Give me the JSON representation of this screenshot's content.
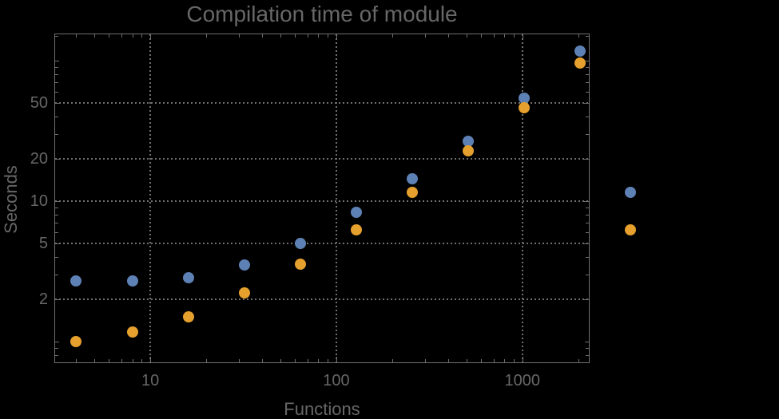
{
  "colors": {
    "background": "#000000",
    "frame_gray": "#707070",
    "grid_gray": "#707070",
    "text_gray": "#676767",
    "series1_blue": "#5E81B5",
    "series2_orange": "#E5A02D"
  },
  "chart_data": {
    "type": "scatter",
    "title": "Compilation time of module",
    "xlabel": "Functions",
    "ylabel": "Seconds",
    "x_scale": "log",
    "y_scale": "log",
    "xlim": [
      3.05,
      2300
    ],
    "ylim": [
      0.7,
      155
    ],
    "grid": "dotted",
    "grid_on": true,
    "x_ticks": [
      {
        "value": 10,
        "label": "10"
      },
      {
        "value": 100,
        "label": "100"
      },
      {
        "value": 1000,
        "label": "1000"
      }
    ],
    "y_ticks": [
      {
        "value": 2,
        "label": "2"
      },
      {
        "value": 5,
        "label": "5"
      },
      {
        "value": 10,
        "label": "10"
      },
      {
        "value": 20,
        "label": "20"
      },
      {
        "value": 50,
        "label": "50"
      }
    ],
    "x_minor_ticks": [
      4,
      5,
      6,
      7,
      8,
      9,
      20,
      30,
      40,
      50,
      60,
      70,
      80,
      90,
      200,
      300,
      400,
      500,
      600,
      700,
      800,
      900,
      2000
    ],
    "y_minor_ticks": [
      0.8,
      0.9,
      3,
      4,
      6,
      7,
      8,
      9,
      30,
      40,
      60,
      70,
      80,
      90,
      150
    ],
    "y_mid_ticks": [
      1,
      100
    ],
    "x": [
      4,
      8,
      16,
      32,
      64,
      128,
      256,
      512,
      1024,
      2048
    ],
    "series": [
      {
        "name": "series-1-blue",
        "color": "#5E81B5",
        "values": [
          2.7,
          2.7,
          2.85,
          3.5,
          5.0,
          8.3,
          14.3,
          26.5,
          54,
          116
        ]
      },
      {
        "name": "series-2-orange",
        "color": "#E5A02D",
        "values": [
          1.0,
          1.17,
          1.5,
          2.2,
          3.55,
          6.2,
          11.5,
          22.7,
          46,
          95
        ]
      }
    ],
    "legend": {
      "position": "right-of-plot",
      "labels_visible": false,
      "marker_shape": "disk"
    }
  }
}
